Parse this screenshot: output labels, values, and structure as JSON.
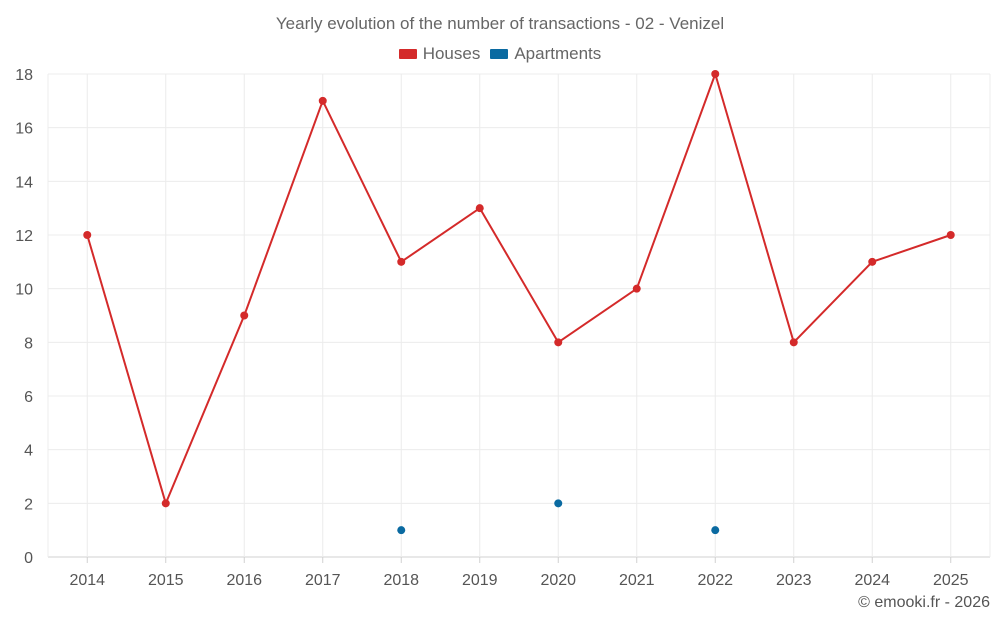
{
  "chart_data": {
    "type": "line",
    "title": "Yearly evolution of the number of transactions - 02 - Venizel",
    "categories": [
      "2014",
      "2015",
      "2016",
      "2017",
      "2018",
      "2019",
      "2020",
      "2021",
      "2022",
      "2023",
      "2024",
      "2025"
    ],
    "series": [
      {
        "name": "Houses",
        "color": "#d42a2a",
        "values": [
          12,
          2,
          9,
          17,
          11,
          13,
          8,
          10,
          18,
          8,
          11,
          12
        ]
      },
      {
        "name": "Apartments",
        "color": "#0a6aa1",
        "values": [
          null,
          null,
          null,
          null,
          1,
          null,
          2,
          null,
          1,
          null,
          null,
          null
        ]
      }
    ],
    "ylim": [
      0,
      18
    ],
    "yticks": [
      0,
      2,
      4,
      6,
      8,
      10,
      12,
      14,
      16,
      18
    ],
    "xlabel": "",
    "ylabel": "",
    "grid": true,
    "legend": "top-center"
  },
  "credit": "© emooki.fr - 2026"
}
